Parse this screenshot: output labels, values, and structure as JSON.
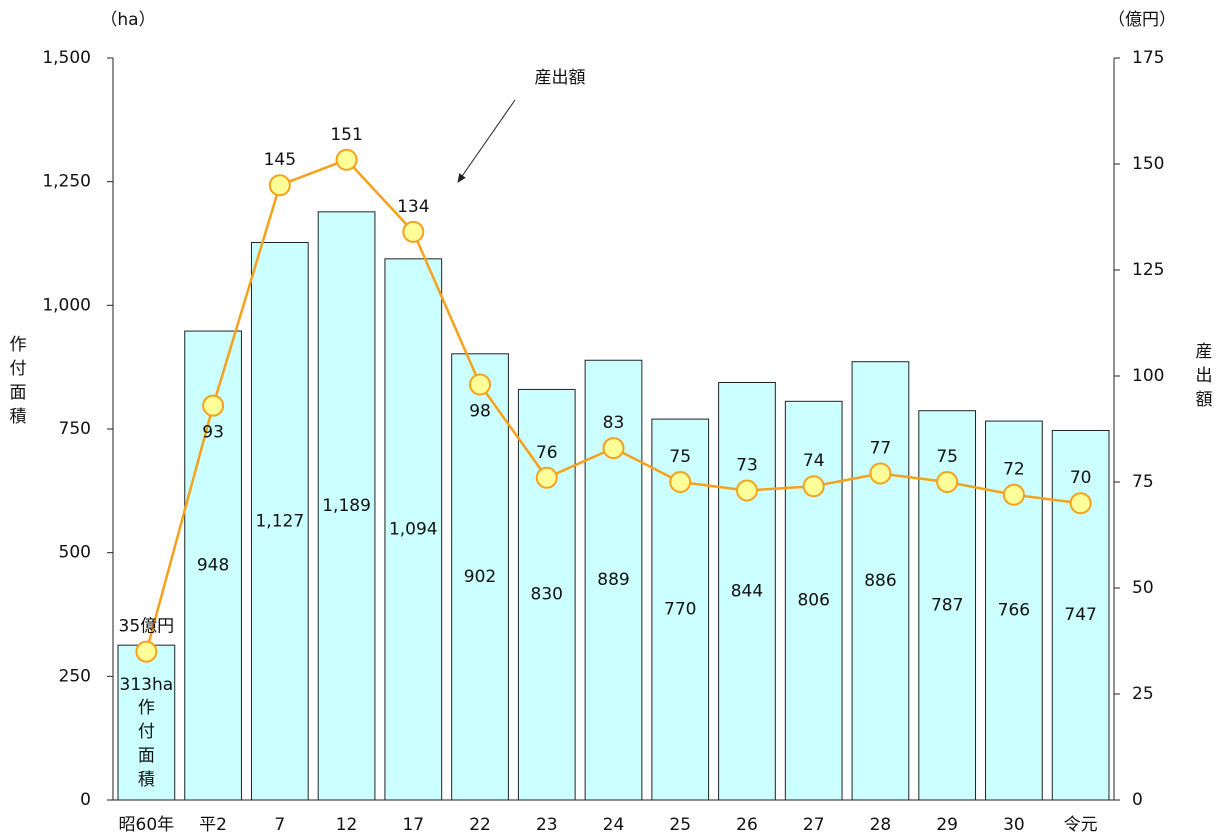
{
  "chart_data": {
    "type": "bar",
    "categories": [
      "昭60年",
      "平2",
      "7",
      "12",
      "17",
      "22",
      "23",
      "24",
      "25",
      "26",
      "27",
      "28",
      "29",
      "30",
      "令元"
    ],
    "series": [
      {
        "name": "作付面積",
        "type": "bar",
        "color": "#ccffff",
        "values": [
          313,
          948,
          1127,
          1189,
          1094,
          902,
          830,
          889,
          770,
          844,
          806,
          886,
          787,
          766,
          747
        ],
        "value_labels": [
          "313ha",
          "948",
          "1,127",
          "1,189",
          "1,094",
          "902",
          "830",
          "889",
          "770",
          "844",
          "806",
          "886",
          "787",
          "766",
          "747"
        ]
      },
      {
        "name": "産出額",
        "type": "line",
        "axis": "y2",
        "color": "#f5a11c",
        "marker_color": "#ffff99",
        "values": [
          35,
          93,
          145,
          151,
          134,
          98,
          76,
          83,
          75,
          73,
          74,
          77,
          75,
          72,
          70
        ],
        "value_labels": [
          "35億円",
          "93",
          "145",
          "151",
          "134",
          "98",
          "76",
          "83",
          "75",
          "73",
          "74",
          "77",
          "75",
          "72",
          "70"
        ]
      }
    ],
    "y_unit": "（ha）",
    "y2_unit": "（億円）",
    "ylabel": "作付面積",
    "y2label": "産出額",
    "annotation": "産出額",
    "bar_annotation": "作付面積",
    "ylim": [
      0,
      1500
    ],
    "yticks": [
      0,
      250,
      500,
      750,
      {
        "value": 1000,
        "label": "1,000"
      },
      {
        "value": 1250,
        "label": "1,250"
      },
      {
        "value": 1500,
        "label": "1,500"
      }
    ],
    "y2lim": [
      0,
      175
    ],
    "y2ticks": [
      0,
      25,
      50,
      75,
      100,
      125,
      150,
      175
    ],
    "grid": false
  }
}
